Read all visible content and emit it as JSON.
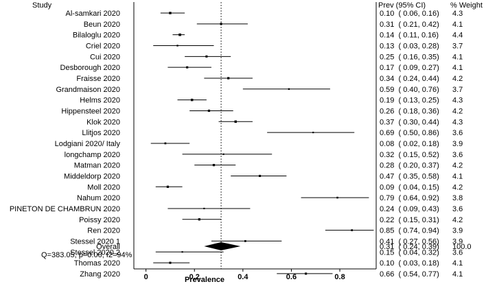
{
  "chart_data": {
    "type": "forest",
    "headers": {
      "study": "Study",
      "estimate": "Prev (95% CI)",
      "weight": "% Weight"
    },
    "xlabel": "Prevalence",
    "xlim": [
      -0.05,
      0.95
    ],
    "xticks": [
      0,
      0.2,
      0.4,
      0.6,
      0.8
    ],
    "xtick_labels": [
      "0",
      "0.2",
      "0.4",
      "0.6",
      "0.8"
    ],
    "reference_line": 0.31,
    "studies": [
      {
        "name": "Al-samkari 2020",
        "est": 0.1,
        "lo": 0.06,
        "hi": 0.16,
        "ci_text": "0.10  ( 0.06, 0.16)",
        "weight": "4.3"
      },
      {
        "name": "Beun 2020",
        "est": 0.31,
        "lo": 0.21,
        "hi": 0.42,
        "ci_text": "0.31  ( 0.21, 0.42)",
        "weight": "4.1"
      },
      {
        "name": "Bilaloglu 2020",
        "est": 0.14,
        "lo": 0.11,
        "hi": 0.16,
        "ci_text": "0.14  ( 0.11, 0.16)",
        "weight": "4.4"
      },
      {
        "name": "Criel 2020",
        "est": 0.13,
        "lo": 0.03,
        "hi": 0.28,
        "ci_text": "0.13  ( 0.03, 0.28)",
        "weight": "3.7"
      },
      {
        "name": "Cui 2020",
        "est": 0.25,
        "lo": 0.16,
        "hi": 0.35,
        "ci_text": "0.25  ( 0.16, 0.35)",
        "weight": "4.1"
      },
      {
        "name": "Desborough 2020",
        "est": 0.17,
        "lo": 0.09,
        "hi": 0.27,
        "ci_text": "0.17  ( 0.09, 0.27)",
        "weight": "4.1"
      },
      {
        "name": "Fraisse 2020",
        "est": 0.34,
        "lo": 0.24,
        "hi": 0.44,
        "ci_text": "0.34  ( 0.24, 0.44)",
        "weight": "4.2"
      },
      {
        "name": "Grandmaison 2020",
        "est": 0.59,
        "lo": 0.4,
        "hi": 0.76,
        "ci_text": "0.59  ( 0.40, 0.76)",
        "weight": "3.7"
      },
      {
        "name": "Helms 2020",
        "est": 0.19,
        "lo": 0.13,
        "hi": 0.25,
        "ci_text": "0.19  ( 0.13, 0.25)",
        "weight": "4.3"
      },
      {
        "name": "Hippensteel 2020",
        "est": 0.26,
        "lo": 0.18,
        "hi": 0.36,
        "ci_text": "0.26  ( 0.18, 0.36)",
        "weight": "4.2"
      },
      {
        "name": "Klok 2020",
        "est": 0.37,
        "lo": 0.3,
        "hi": 0.44,
        "ci_text": "0.37  ( 0.30, 0.44)",
        "weight": "4.3"
      },
      {
        "name": "Llitjos 2020",
        "est": 0.69,
        "lo": 0.5,
        "hi": 0.86,
        "ci_text": "0.69  ( 0.50, 0.86)",
        "weight": "3.6"
      },
      {
        "name": "Lodgiani 2020/ Italy",
        "est": 0.08,
        "lo": 0.02,
        "hi": 0.18,
        "ci_text": "0.08  ( 0.02, 0.18)",
        "weight": "3.9"
      },
      {
        "name": "longchamp 2020",
        "est": 0.32,
        "lo": 0.15,
        "hi": 0.52,
        "ci_text": "0.32  ( 0.15, 0.52)",
        "weight": "3.6"
      },
      {
        "name": "Matman 2020",
        "est": 0.28,
        "lo": 0.2,
        "hi": 0.37,
        "ci_text": "0.28  ( 0.20, 0.37)",
        "weight": "4.2"
      },
      {
        "name": "Middeldorp 2020",
        "est": 0.47,
        "lo": 0.35,
        "hi": 0.58,
        "ci_text": "0.47  ( 0.35, 0.58)",
        "weight": "4.1"
      },
      {
        "name": "Moll 2020",
        "est": 0.09,
        "lo": 0.04,
        "hi": 0.15,
        "ci_text": "0.09  ( 0.04, 0.15)",
        "weight": "4.2"
      },
      {
        "name": "Nahum 2020",
        "est": 0.79,
        "lo": 0.64,
        "hi": 0.92,
        "ci_text": "0.79  ( 0.64, 0.92)",
        "weight": "3.8"
      },
      {
        "name": "PINETON DE CHAMBRUN 2020",
        "est": 0.24,
        "lo": 0.09,
        "hi": 0.43,
        "ci_text": "0.24  ( 0.09, 0.43)",
        "weight": "3.6"
      },
      {
        "name": "Poissy 2020",
        "est": 0.22,
        "lo": 0.15,
        "hi": 0.31,
        "ci_text": "0.22  ( 0.15, 0.31)",
        "weight": "4.2"
      },
      {
        "name": "Ren 2020",
        "est": 0.85,
        "lo": 0.74,
        "hi": 0.94,
        "ci_text": "0.85  ( 0.74, 0.94)",
        "weight": "3.9"
      },
      {
        "name": "Stessel 2020 1",
        "est": 0.41,
        "lo": 0.27,
        "hi": 0.56,
        "ci_text": "0.41  ( 0.27, 0.56)",
        "weight": "3.9"
      },
      {
        "name": "Stessel 2020 2",
        "est": 0.15,
        "lo": 0.04,
        "hi": 0.32,
        "ci_text": "0.15  ( 0.04, 0.32)",
        "weight": "3.6"
      },
      {
        "name": "Thomas 2020",
        "est": 0.1,
        "lo": 0.03,
        "hi": 0.18,
        "ci_text": "0.10  ( 0.03, 0.18)",
        "weight": "4.1"
      },
      {
        "name": "Zhang 2020",
        "est": 0.66,
        "lo": 0.54,
        "hi": 0.77,
        "ci_text": "0.66  ( 0.54, 0.77)",
        "weight": "4.1"
      }
    ],
    "overall": {
      "name": "Overall",
      "est": 0.31,
      "lo": 0.24,
      "hi": 0.39,
      "ci_text": "0.31  ( 0.24, 0.39)",
      "weight": "100.0"
    },
    "heterogeneity": "Q=383.05, p=0.00, I2=94%"
  }
}
